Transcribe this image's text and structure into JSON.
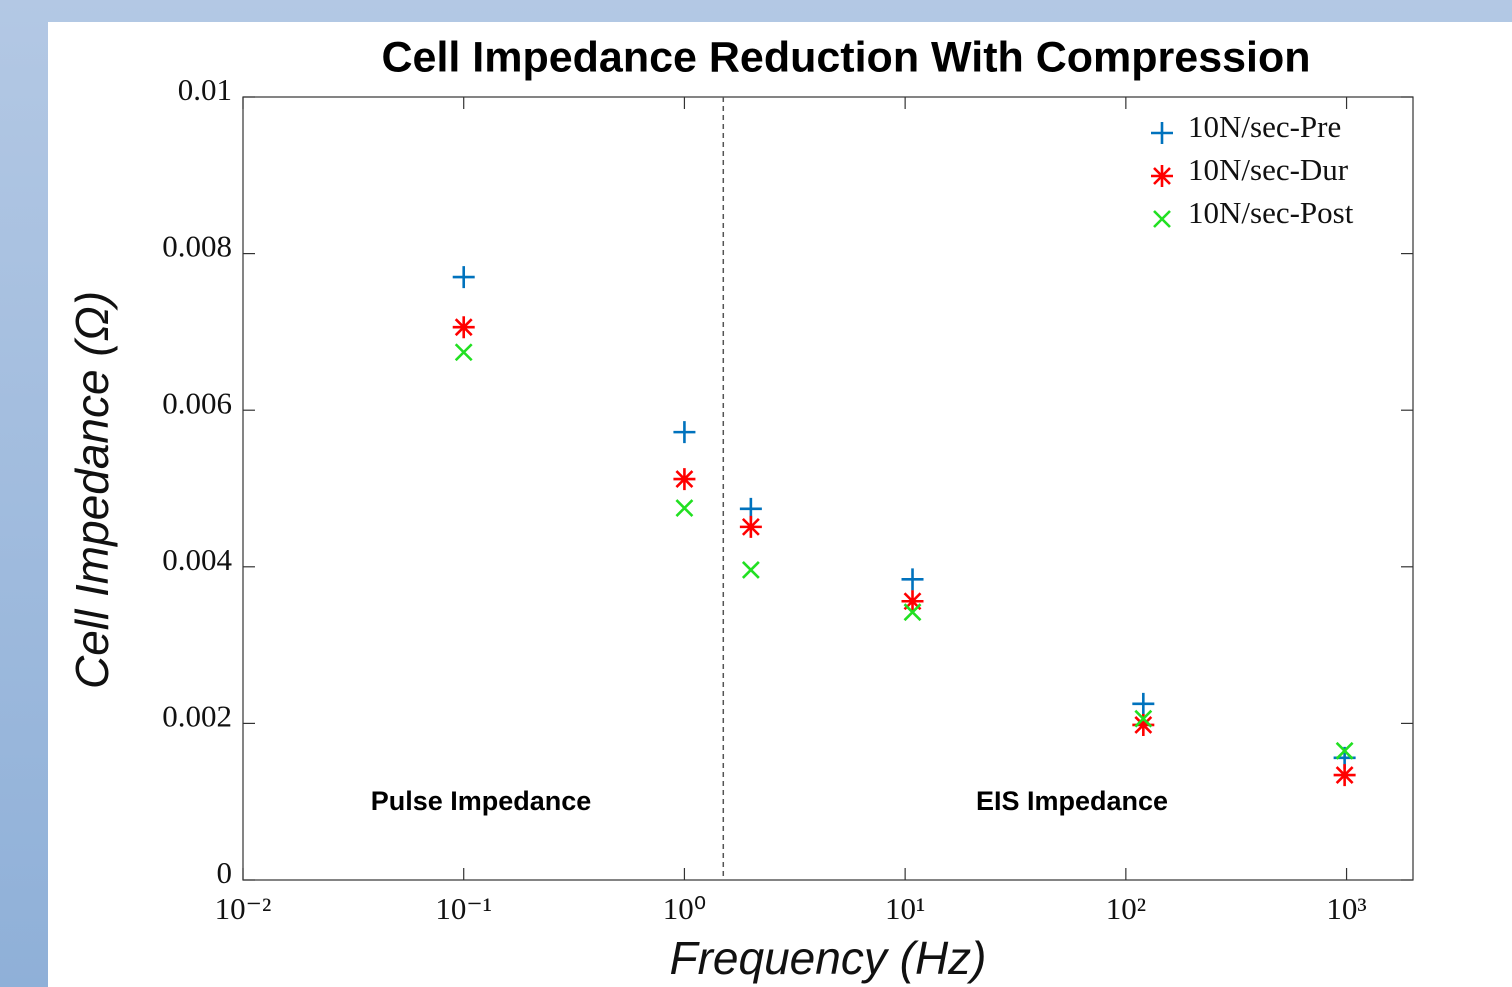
{
  "chart_data": {
    "type": "scatter",
    "title": "Cell Impedance Reduction With Compression",
    "xlabel": "Frequency (Hz)",
    "ylabel": "Cell Impedance (Ω)",
    "xscale": "log",
    "x": [
      0.1,
      1,
      2,
      10.8,
      120,
      980
    ],
    "series": [
      {
        "name": "10N/sec-Pre",
        "color": "#0072bd",
        "marker": "+",
        "values": [
          0.0077,
          0.00572,
          0.00474,
          0.00384,
          0.00225,
          0.00156
        ]
      },
      {
        "name": "10N/sec-Dur",
        "color": "#ff0000",
        "marker": "*",
        "values": [
          0.00706,
          0.00512,
          0.00451,
          0.00356,
          0.00198,
          0.00134
        ]
      },
      {
        "name": "10N/sec-Post",
        "color": "#22e022",
        "marker": "x",
        "values": [
          0.00674,
          0.00475,
          0.00396,
          0.00342,
          0.00206,
          0.00165
        ]
      }
    ],
    "xlim": [
      0.01,
      2000
    ],
    "ylim": [
      0,
      0.01
    ],
    "xticks": [
      {
        "value": 0.01,
        "label": "10⁻²"
      },
      {
        "value": 0.1,
        "label": "10⁻¹"
      },
      {
        "value": 1,
        "label": "10⁰"
      },
      {
        "value": 10,
        "label": "10¹"
      },
      {
        "value": 100,
        "label": "10²"
      },
      {
        "value": 1000,
        "label": "10³"
      }
    ],
    "yticks": [
      0,
      0.002,
      0.004,
      0.006,
      0.008,
      0.01
    ],
    "vlines": [
      1.5
    ],
    "annotations": [
      "Pulse Impedance",
      "EIS Impedance"
    ],
    "legend": "upper right",
    "grid": false
  }
}
